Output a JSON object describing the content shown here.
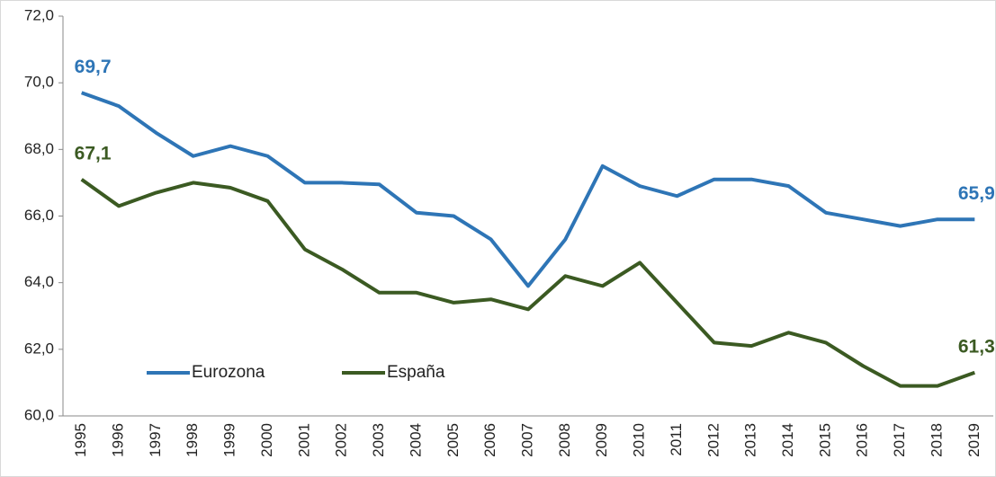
{
  "chart_data": {
    "type": "line",
    "categories": [
      "1995",
      "1996",
      "1997",
      "1998",
      "1999",
      "2000",
      "2001",
      "2002",
      "2003",
      "2004",
      "2005",
      "2006",
      "2007",
      "2008",
      "2009",
      "2010",
      "2011",
      "2012",
      "2013",
      "2014",
      "2015",
      "2016",
      "2017",
      "2018",
      "2019"
    ],
    "series": [
      {
        "name": "Eurozona",
        "color": "#2e75b6",
        "values": [
          69.7,
          69.3,
          68.5,
          67.8,
          68.1,
          67.8,
          67.0,
          67.0,
          66.95,
          66.1,
          66.0,
          65.3,
          63.9,
          65.3,
          67.5,
          66.9,
          66.6,
          67.1,
          67.1,
          66.9,
          66.1,
          65.9,
          65.7,
          65.9,
          65.9
        ],
        "value_labels": [
          "69,7",
          null,
          null,
          null,
          null,
          null,
          null,
          null,
          null,
          null,
          null,
          null,
          null,
          null,
          null,
          null,
          null,
          null,
          null,
          null,
          null,
          null,
          null,
          null,
          "65,9"
        ]
      },
      {
        "name": "España",
        "color": "#3b5a22",
        "values": [
          67.1,
          66.3,
          66.7,
          67.0,
          66.85,
          66.45,
          65.0,
          64.4,
          63.7,
          63.7,
          63.4,
          63.5,
          63.2,
          64.2,
          63.9,
          64.6,
          63.4,
          62.2,
          62.1,
          62.5,
          62.2,
          61.5,
          60.9,
          60.9,
          61.3
        ],
        "value_labels": [
          "67,1",
          null,
          null,
          null,
          null,
          null,
          null,
          null,
          null,
          null,
          null,
          null,
          null,
          null,
          null,
          null,
          null,
          null,
          null,
          null,
          null,
          null,
          null,
          null,
          "61,3"
        ]
      }
    ],
    "ylim": [
      60,
      72
    ],
    "yticks": [
      {
        "value": 60,
        "label": "60,0"
      },
      {
        "value": 62,
        "label": "62,0"
      },
      {
        "value": 64,
        "label": "64,0"
      },
      {
        "value": 66,
        "label": "66,0"
      },
      {
        "value": 68,
        "label": "68,0"
      },
      {
        "value": 70,
        "label": "70,0"
      },
      {
        "value": 72,
        "label": "72,0"
      }
    ],
    "grid": false,
    "legend": "lower left"
  }
}
